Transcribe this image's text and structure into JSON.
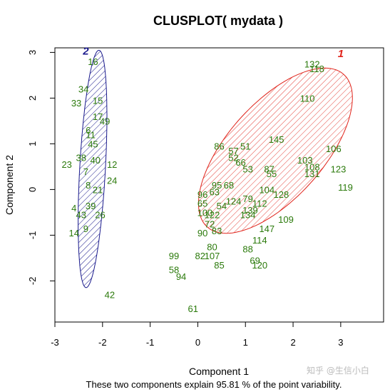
{
  "chart_data": {
    "type": "scatter",
    "title": "CLUSPLOT( mydata )",
    "xlabel": "Component 1",
    "ylabel": "Component 2",
    "subtitle": "These two components explain 95.81 % of the point variability.",
    "xlim": [
      -3.0,
      3.9
    ],
    "ylim": [
      -2.9,
      3.1
    ],
    "xticks": [
      -3,
      -2,
      -1,
      0,
      1,
      2,
      3
    ],
    "yticks": [
      -2,
      -1,
      0,
      1,
      2,
      3
    ],
    "grid": false,
    "colors": {
      "points": "#2b7a0b",
      "cluster_1": "#e0241b",
      "cluster_2": "#1a1a8c",
      "axis": "#000000"
    },
    "clusters": [
      {
        "label": "1",
        "center": [
          1.63,
          0.85
        ],
        "a": 2.2,
        "b": 1.02,
        "angle_deg": 50,
        "label_pos": [
          3.0,
          2.9
        ]
      },
      {
        "label": "2",
        "center": [
          -2.21,
          0.45
        ],
        "a": 2.6,
        "b": 0.27,
        "angle_deg": 87,
        "label_pos": [
          -2.35,
          2.95
        ]
      }
    ],
    "points": [
      {
        "label": "16",
        "x": -2.2,
        "y": 2.8
      },
      {
        "label": "34",
        "x": -2.4,
        "y": 2.2
      },
      {
        "label": "33",
        "x": -2.55,
        "y": 1.9
      },
      {
        "label": "15",
        "x": -2.1,
        "y": 1.95
      },
      {
        "label": "17",
        "x": -2.1,
        "y": 1.6
      },
      {
        "label": "49",
        "x": -1.95,
        "y": 1.5
      },
      {
        "label": "6",
        "x": -2.3,
        "y": 1.3
      },
      {
        "label": "11",
        "x": -2.25,
        "y": 1.2
      },
      {
        "label": "45",
        "x": -2.2,
        "y": 1.0
      },
      {
        "label": "23",
        "x": -2.75,
        "y": 0.55
      },
      {
        "label": "38",
        "x": -2.45,
        "y": 0.7
      },
      {
        "label": "40",
        "x": -2.15,
        "y": 0.65
      },
      {
        "label": "12",
        "x": -1.8,
        "y": 0.55
      },
      {
        "label": "24",
        "x": -1.8,
        "y": 0.2
      },
      {
        "label": "7",
        "x": -2.35,
        "y": 0.4
      },
      {
        "label": "8",
        "x": -2.3,
        "y": 0.1
      },
      {
        "label": "21",
        "x": -2.1,
        "y": 0.0
      },
      {
        "label": "4",
        "x": -2.6,
        "y": -0.4
      },
      {
        "label": "43",
        "x": -2.45,
        "y": -0.55
      },
      {
        "label": "39",
        "x": -2.25,
        "y": -0.35
      },
      {
        "label": "26",
        "x": -2.05,
        "y": -0.55
      },
      {
        "label": "9",
        "x": -2.35,
        "y": -0.85
      },
      {
        "label": "14",
        "x": -2.6,
        "y": -0.95
      },
      {
        "label": "42",
        "x": -1.85,
        "y": -2.3
      },
      {
        "label": "132",
        "x": 2.4,
        "y": 2.75
      },
      {
        "label": "118",
        "x": 2.5,
        "y": 2.65
      },
      {
        "label": "110",
        "x": 2.3,
        "y": 2.0
      },
      {
        "label": "86",
        "x": 0.45,
        "y": 0.95
      },
      {
        "label": "51",
        "x": 1.0,
        "y": 0.95
      },
      {
        "label": "145",
        "x": 1.65,
        "y": 1.1
      },
      {
        "label": "106",
        "x": 2.85,
        "y": 0.9
      },
      {
        "label": "57",
        "x": 0.75,
        "y": 0.85
      },
      {
        "label": "52",
        "x": 0.75,
        "y": 0.7
      },
      {
        "label": "103",
        "x": 2.25,
        "y": 0.65
      },
      {
        "label": "108",
        "x": 2.4,
        "y": 0.5
      },
      {
        "label": "123",
        "x": 2.95,
        "y": 0.45
      },
      {
        "label": "131",
        "x": 2.4,
        "y": 0.35
      },
      {
        "label": "66",
        "x": 0.9,
        "y": 0.6
      },
      {
        "label": "53",
        "x": 1.05,
        "y": 0.45
      },
      {
        "label": "87",
        "x": 1.5,
        "y": 0.45
      },
      {
        "label": "55",
        "x": 1.55,
        "y": 0.35
      },
      {
        "label": "119",
        "x": 3.1,
        "y": 0.05
      },
      {
        "label": "95",
        "x": 0.4,
        "y": 0.1
      },
      {
        "label": "68",
        "x": 0.65,
        "y": 0.1
      },
      {
        "label": "104",
        "x": 1.45,
        "y": 0.0
      },
      {
        "label": "128",
        "x": 1.75,
        "y": -0.1
      },
      {
        "label": "63",
        "x": 0.35,
        "y": -0.05
      },
      {
        "label": "96",
        "x": 0.1,
        "y": -0.1
      },
      {
        "label": "65",
        "x": 0.1,
        "y": -0.3
      },
      {
        "label": "54",
        "x": 0.5,
        "y": -0.35
      },
      {
        "label": "124",
        "x": 0.75,
        "y": -0.25
      },
      {
        "label": "79",
        "x": 1.05,
        "y": -0.2
      },
      {
        "label": "112",
        "x": 1.3,
        "y": -0.3
      },
      {
        "label": "139",
        "x": 1.1,
        "y": -0.45
      },
      {
        "label": "122",
        "x": 0.3,
        "y": -0.55
      },
      {
        "label": "100",
        "x": 0.15,
        "y": -0.5
      },
      {
        "label": "134",
        "x": 1.05,
        "y": -0.55
      },
      {
        "label": "109",
        "x": 1.85,
        "y": -0.65
      },
      {
        "label": "72",
        "x": 0.25,
        "y": -0.75
      },
      {
        "label": "90",
        "x": 0.1,
        "y": -0.95
      },
      {
        "label": "83",
        "x": 0.4,
        "y": -0.9
      },
      {
        "label": "147",
        "x": 1.45,
        "y": -0.85
      },
      {
        "label": "114",
        "x": 1.3,
        "y": -1.1
      },
      {
        "label": "88",
        "x": 1.05,
        "y": -1.3
      },
      {
        "label": "80",
        "x": 0.3,
        "y": -1.25
      },
      {
        "label": "99",
        "x": -0.5,
        "y": -1.45
      },
      {
        "label": "82",
        "x": 0.05,
        "y": -1.45
      },
      {
        "label": "107",
        "x": 0.3,
        "y": -1.45
      },
      {
        "label": "85",
        "x": 0.45,
        "y": -1.65
      },
      {
        "label": "120",
        "x": 1.3,
        "y": -1.65
      },
      {
        "label": "69",
        "x": 1.2,
        "y": -1.55
      },
      {
        "label": "58",
        "x": -0.5,
        "y": -1.75
      },
      {
        "label": "94",
        "x": -0.35,
        "y": -1.9
      },
      {
        "label": "61",
        "x": -0.1,
        "y": -2.6
      }
    ]
  }
}
